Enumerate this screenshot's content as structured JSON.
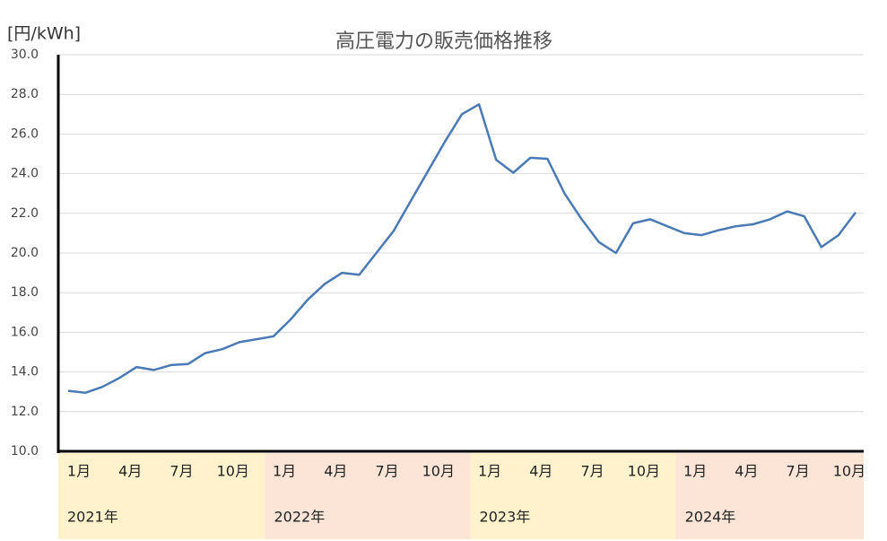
{
  "chart_data": {
    "type": "line",
    "title": "高圧電力の販売価格推移",
    "y_label": "[円/kWh]",
    "categories": [
      "1月",
      null,
      null,
      "4月",
      null,
      null,
      "7月",
      null,
      null,
      "10月",
      null,
      null,
      "1月",
      null,
      null,
      "4月",
      null,
      null,
      "7月",
      null,
      null,
      "10月",
      null,
      null,
      "1月",
      null,
      null,
      "4月",
      null,
      null,
      "7月",
      null,
      null,
      "10月",
      null,
      null,
      "1月",
      null,
      null,
      "4月",
      null,
      null,
      "7月",
      null,
      null,
      "10月",
      null
    ],
    "groups": [
      {
        "label": "2021年",
        "color": "#fff2cc"
      },
      {
        "label": "2022年",
        "color": "#fce4d6"
      },
      {
        "label": "2023年",
        "color": "#fff2cc"
      },
      {
        "label": "2024年",
        "color": "#fce4d6"
      }
    ],
    "series": [
      {
        "color": "#4a7ab5",
        "values": [
          13.05,
          12.95,
          13.25,
          13.7,
          14.25,
          14.1,
          14.35,
          14.4,
          14.95,
          15.15,
          15.5,
          15.65,
          15.8,
          16.65,
          17.65,
          18.45,
          19.0,
          18.9,
          20.0,
          21.1,
          22.6,
          24.1,
          25.6,
          27.0,
          27.5,
          24.7,
          24.05,
          24.8,
          24.75,
          23.0,
          21.7,
          20.55,
          20.0,
          21.5,
          21.7,
          21.35,
          21.0,
          20.9,
          21.15,
          21.35,
          21.45,
          21.7,
          22.1,
          21.85,
          20.3,
          20.9,
          22.05
        ]
      }
    ],
    "ylim": [
      10,
      30
    ],
    "yticks": [
      {
        "value": 10,
        "label": "10.0"
      },
      {
        "value": 12,
        "label": "12.0"
      },
      {
        "value": 14,
        "label": "14.0"
      },
      {
        "value": 16,
        "label": "16.0"
      },
      {
        "value": 18,
        "label": "18.0"
      },
      {
        "value": 20,
        "label": "20.0"
      },
      {
        "value": 22,
        "label": "22.0"
      },
      {
        "value": 24,
        "label": "24.0"
      },
      {
        "value": 26,
        "label": "26.0"
      },
      {
        "value": 28,
        "label": "28.0"
      },
      {
        "value": 30,
        "label": "30.0"
      }
    ],
    "grid": true
  }
}
